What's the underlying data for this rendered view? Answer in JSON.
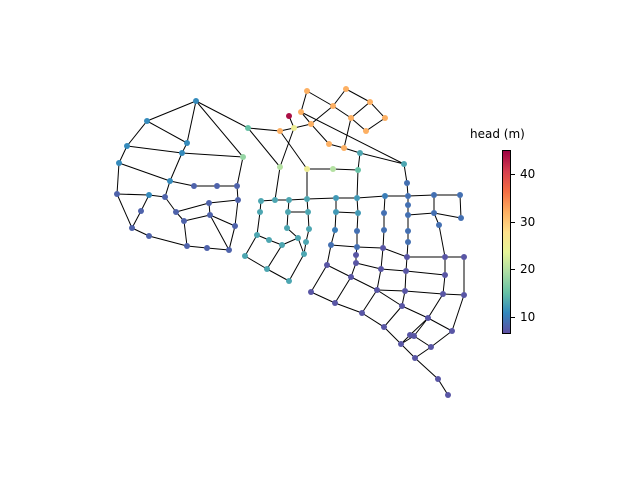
{
  "colorbar": {
    "title": "head (m)",
    "ticks": [
      "10",
      "20",
      "30",
      "40"
    ],
    "colormap": "Spectral_r",
    "range": [
      6.5,
      45
    ],
    "colors": [
      "#5e4fa2",
      "#3288bd",
      "#66c2a5",
      "#abdda4",
      "#e6f598",
      "#fee08b",
      "#fdae61",
      "#f46d43",
      "#d53e4f",
      "#9e0142"
    ]
  },
  "network": {
    "node_heads": [
      8,
      11,
      18,
      44,
      34,
      32,
      25,
      20,
      15,
      13,
      12,
      10,
      9,
      7
    ]
  }
}
